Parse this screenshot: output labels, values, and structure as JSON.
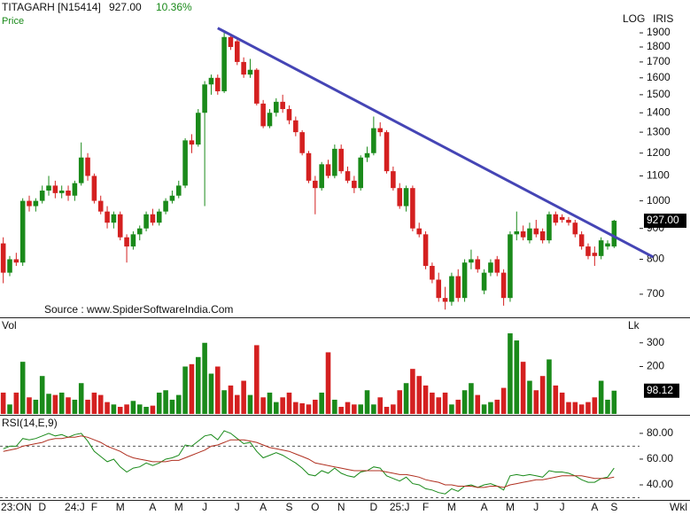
{
  "chart_data": [
    {
      "type": "candlestick",
      "symbol": "TITAGARH [N15414]",
      "last_price": "927.00",
      "change": "10.36%",
      "panel_label": "Price",
      "scale_label": "LOG",
      "vendor_label": "IRIS",
      "source": "Source : www.SpiderSoftwareIndia.Com",
      "period_label": "Wkl",
      "log_scale": true,
      "up_color": "#1a8a1a",
      "down_color": "#d42020",
      "categories": [
        null,
        null,
        "23:ON",
        null,
        null,
        null,
        "D",
        null,
        null,
        null,
        null,
        "24:J",
        null,
        null,
        "F",
        null,
        null,
        null,
        "M",
        null,
        null,
        null,
        null,
        "A",
        null,
        null,
        null,
        "M",
        null,
        null,
        null,
        "J",
        null,
        null,
        null,
        null,
        "J",
        null,
        null,
        null,
        "A",
        null,
        null,
        null,
        "S",
        null,
        null,
        null,
        "O",
        null,
        null,
        null,
        "N",
        null,
        null,
        null,
        null,
        "D",
        null,
        null,
        null,
        "25:J",
        null,
        null,
        null,
        "F",
        null,
        null,
        null,
        "M",
        null,
        null,
        null,
        null,
        "A",
        null,
        null,
        null,
        "M",
        null,
        null,
        null,
        "J",
        null,
        null,
        null,
        "J",
        null,
        null,
        null,
        null,
        "A",
        null,
        null,
        "S"
      ],
      "open": [
        850,
        760,
        800,
        790,
        1000,
        980,
        1000,
        1040,
        1060,
        1030,
        1040,
        1020,
        1070,
        1180,
        1100,
        1000,
        960,
        920,
        950,
        870,
        840,
        880,
        900,
        950,
        920,
        960,
        1000,
        1020,
        1060,
        1260,
        1240,
        1400,
        1560,
        1600,
        1520,
        1870,
        1840,
        1700,
        1620,
        1650,
        1450,
        1330,
        1400,
        1460,
        1420,
        1360,
        1300,
        1200,
        1080,
        1050,
        1150,
        1100,
        1220,
        1120,
        1080,
        1050,
        1180,
        1200,
        1320,
        1300,
        1120,
        1050,
        980,
        1050,
        900,
        880,
        780,
        740,
        690,
        680,
        750,
        690,
        790,
        800,
        710,
        760,
        800,
        760,
        690,
        880,
        890,
        860,
        900,
        890,
        860,
        950,
        940,
        930,
        920,
        880,
        840,
        820,
        810,
        840,
        840
      ],
      "high": [
        870,
        810,
        820,
        1010,
        1020,
        1010,
        1060,
        1100,
        1080,
        1060,
        1060,
        1080,
        1250,
        1200,
        1110,
        1020,
        980,
        960,
        960,
        880,
        890,
        910,
        960,
        970,
        970,
        1010,
        1040,
        1080,
        1270,
        1290,
        1420,
        1580,
        1620,
        1620,
        1900,
        1890,
        1860,
        1730,
        1720,
        1660,
        1470,
        1420,
        1480,
        1500,
        1440,
        1380,
        1310,
        1210,
        1100,
        1160,
        1170,
        1240,
        1240,
        1140,
        1100,
        1190,
        1230,
        1380,
        1350,
        1310,
        1140,
        1070,
        1060,
        1060,
        920,
        890,
        790,
        760,
        720,
        760,
        770,
        800,
        830,
        810,
        770,
        800,
        810,
        770,
        890,
        960,
        910,
        920,
        930,
        900,
        960,
        960,
        950,
        940,
        930,
        890,
        850,
        840,
        870,
        860,
        930
      ],
      "low": [
        730,
        750,
        780,
        780,
        960,
        960,
        990,
        1020,
        1010,
        1010,
        1000,
        1000,
        1060,
        1080,
        990,
        950,
        900,
        900,
        860,
        790,
        830,
        860,
        890,
        910,
        910,
        950,
        990,
        1010,
        1050,
        1200,
        1230,
        980,
        1500,
        1500,
        1510,
        1780,
        1680,
        1600,
        1600,
        1440,
        1320,
        1320,
        1380,
        1400,
        1340,
        1280,
        1190,
        1070,
        950,
        1040,
        1090,
        1090,
        1110,
        1070,
        1030,
        1040,
        1160,
        1190,
        1280,
        1110,
        1040,
        970,
        960,
        890,
        870,
        770,
        730,
        680,
        660,
        670,
        680,
        680,
        770,
        760,
        700,
        750,
        750,
        670,
        680,
        860,
        860,
        850,
        870,
        850,
        850,
        910,
        920,
        910,
        870,
        830,
        800,
        780,
        800,
        830,
        835
      ],
      "close": [
        760,
        800,
        790,
        1000,
        980,
        1000,
        1040,
        1060,
        1030,
        1040,
        1020,
        1070,
        1180,
        1100,
        1000,
        960,
        920,
        950,
        870,
        840,
        880,
        900,
        950,
        920,
        960,
        1000,
        1020,
        1060,
        1260,
        1240,
        1400,
        1560,
        1600,
        1520,
        1870,
        1800,
        1700,
        1620,
        1650,
        1450,
        1330,
        1400,
        1460,
        1420,
        1360,
        1300,
        1200,
        1080,
        1050,
        1150,
        1100,
        1220,
        1120,
        1080,
        1050,
        1180,
        1200,
        1320,
        1300,
        1120,
        1050,
        980,
        1050,
        900,
        880,
        780,
        740,
        690,
        680,
        750,
        690,
        790,
        800,
        770,
        760,
        790,
        760,
        690,
        880,
        890,
        870,
        900,
        880,
        860,
        950,
        920,
        930,
        920,
        880,
        840,
        810,
        810,
        860,
        850,
        927
      ],
      "last_value_label": "927.00",
      "ylim": [
        643,
        2154
      ],
      "yticks": [
        700,
        800,
        900,
        1000,
        1100,
        1200,
        1300,
        1400,
        1500,
        1600,
        1700,
        1800,
        1900
      ],
      "trendline": {
        "x": [
          33,
          100
        ],
        "y": [
          1935,
          807
        ],
        "color": "#4545b5"
      }
    },
    {
      "type": "bar",
      "panel_label": "Vol",
      "unit_label": "Lk",
      "values": [
        90,
        40,
        90,
        220,
        70,
        60,
        160,
        85,
        80,
        90,
        70,
        60,
        130,
        60,
        90,
        80,
        50,
        40,
        30,
        40,
        55,
        40,
        30,
        35,
        90,
        100,
        60,
        80,
        200,
        210,
        240,
        300,
        170,
        200,
        100,
        120,
        80,
        140,
        80,
        290,
        70,
        90,
        50,
        70,
        90,
        50,
        45,
        40,
        60,
        90,
        260,
        60,
        30,
        50,
        40,
        40,
        100,
        40,
        70,
        30,
        40,
        100,
        130,
        190,
        160,
        120,
        90,
        70,
        90,
        40,
        60,
        100,
        130,
        80,
        40,
        50,
        60,
        110,
        340,
        310,
        220,
        140,
        100,
        160,
        230,
        120,
        90,
        50,
        50,
        40,
        50,
        70,
        140,
        60,
        98.12
      ],
      "last_value_label": "98.12",
      "ylim": [
        0,
        400
      ],
      "yticks": [
        200,
        300
      ]
    },
    {
      "type": "line",
      "panel_label": "RSI(14,E,9)",
      "series": [
        {
          "color": "#1a8a1a",
          "values": [
            68,
            70,
            70,
            76,
            75,
            76,
            78,
            80,
            78,
            79,
            77,
            79,
            80,
            74,
            66,
            62,
            58,
            60,
            54,
            50,
            53,
            54,
            57,
            55,
            57,
            60,
            61,
            63,
            71,
            70,
            74,
            78,
            79,
            75,
            82,
            80,
            76,
            72,
            73,
            66,
            61,
            63,
            65,
            63,
            60,
            57,
            53,
            48,
            47,
            51,
            49,
            53,
            49,
            47,
            46,
            50,
            51,
            54,
            53,
            47,
            45,
            43,
            46,
            41,
            40,
            37,
            36,
            34,
            33,
            37,
            35,
            39,
            40,
            38,
            40,
            41,
            39,
            36,
            47,
            48,
            47,
            48,
            47,
            46,
            51,
            50,
            50,
            49,
            47,
            44,
            42,
            42,
            45,
            46,
            53
          ]
        },
        {
          "color": "#b03020",
          "values": [
            66,
            67,
            68,
            70,
            71,
            72,
            73,
            75,
            76,
            76,
            77,
            77,
            78,
            77,
            75,
            73,
            70,
            68,
            66,
            63,
            61,
            60,
            59,
            58,
            58,
            58,
            59,
            59,
            61,
            63,
            65,
            67,
            70,
            71,
            73,
            75,
            75,
            75,
            74,
            73,
            71,
            69,
            68,
            67,
            66,
            64,
            62,
            60,
            57,
            56,
            55,
            54,
            53,
            52,
            51,
            51,
            51,
            51,
            51,
            50,
            49,
            48,
            48,
            47,
            46,
            44,
            43,
            42,
            40,
            40,
            39,
            39,
            39,
            38,
            38,
            39,
            39,
            38,
            40,
            41,
            42,
            43,
            44,
            44,
            45,
            46,
            47,
            47,
            47,
            47,
            46,
            45,
            45,
            45,
            46
          ]
        }
      ],
      "levels": [
        70,
        30
      ],
      "ylim": [
        29,
        93
      ],
      "yticks": [
        {
          "value": 80,
          "label": "80.00"
        },
        {
          "value": 60,
          "label": "60.00"
        },
        {
          "value": 40,
          "label": "40.00"
        }
      ]
    }
  ]
}
